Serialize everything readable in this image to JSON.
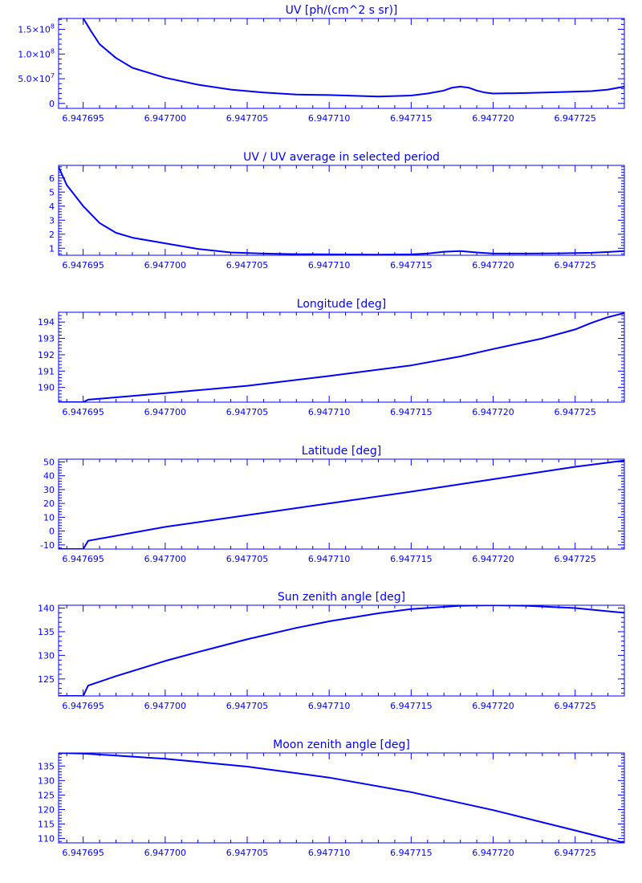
{
  "chart_data": [
    {
      "type": "line",
      "title": "UV [ph/(cm^2 s sr)]",
      "xlim": [
        6.9476935,
        6.947728
      ],
      "ylim": [
        -10000000.0,
        172000000.0
      ],
      "xticks": [
        6.947695,
        6.9477,
        6.947705,
        6.94771,
        6.947715,
        6.94772,
        6.947725
      ],
      "xtick_labels": [
        "6.947695",
        "6.947700",
        "6.947705",
        "6.947710",
        "6.947715",
        "6.947720",
        "6.947725"
      ],
      "yticks": [
        0,
        50000000.0,
        100000000.0,
        150000000.0
      ],
      "ytick_labels": [
        {
          "base": "0",
          "exp": ""
        },
        {
          "base": "5.0×10",
          "exp": "7"
        },
        {
          "base": "1.0×10",
          "exp": "8"
        },
        {
          "base": "1.5×10",
          "exp": "8"
        }
      ],
      "x": [
        6.947695,
        6.9476952,
        6.9476955,
        6.947696,
        6.947697,
        6.947698,
        6.947699,
        6.9477,
        6.947702,
        6.947704,
        6.947706,
        6.947708,
        6.94771,
        6.947712,
        6.947713,
        6.947715,
        6.947716,
        6.947717,
        6.9477175,
        6.947718,
        6.9477185,
        6.947719,
        6.9477195,
        6.94772,
        6.947722,
        6.947724,
        6.947726,
        6.947727,
        6.947728
      ],
      "values": [
        172000000.0,
        162000000.0,
        145000000.0,
        120000000.0,
        92000000.0,
        72000000.0,
        62000000.0,
        52000000.0,
        38000000.0,
        28000000.0,
        22000000.0,
        18000000.0,
        17000000.0,
        15000000.0,
        14000000.0,
        16000000.0,
        20000000.0,
        26000000.0,
        32000000.0,
        34000000.0,
        32000000.0,
        26000000.0,
        22000000.0,
        20000000.0,
        21000000.0,
        23000000.0,
        25000000.0,
        28000000.0,
        34000000.0
      ]
    },
    {
      "type": "line",
      "title": "UV / UV average in selected period",
      "xlim": [
        6.9476935,
        6.947728
      ],
      "ylim": [
        0.5,
        6.9
      ],
      "xticks": [
        6.947695,
        6.9477,
        6.947705,
        6.94771,
        6.947715,
        6.94772,
        6.947725
      ],
      "xtick_labels": [
        "6.947695",
        "6.947700",
        "6.947705",
        "6.947710",
        "6.947715",
        "6.947720",
        "6.947725"
      ],
      "yticks": [
        1,
        2,
        3,
        4,
        5,
        6
      ],
      "ytick_labels": [
        "1",
        "2",
        "3",
        "4",
        "5",
        "6"
      ],
      "x": [
        6.9476935,
        6.947694,
        6.947695,
        6.947696,
        6.947697,
        6.947698,
        6.947699,
        6.9477,
        6.947702,
        6.947704,
        6.947706,
        6.947708,
        6.94771,
        6.947712,
        6.947713,
        6.947715,
        6.947716,
        6.947717,
        6.947718,
        6.947719,
        6.94772,
        6.947722,
        6.947724,
        6.947726,
        6.947728
      ],
      "values": [
        6.8,
        5.5,
        4.0,
        2.8,
        2.1,
        1.75,
        1.55,
        1.35,
        0.95,
        0.7,
        0.62,
        0.58,
        0.56,
        0.55,
        0.54,
        0.56,
        0.62,
        0.75,
        0.8,
        0.7,
        0.62,
        0.62,
        0.64,
        0.68,
        0.8
      ]
    },
    {
      "type": "line",
      "title": "Longitude [deg]",
      "xlim": [
        6.9476935,
        6.947728
      ],
      "ylim": [
        189.1,
        194.6
      ],
      "xticks": [
        6.947695,
        6.9477,
        6.947705,
        6.94771,
        6.947715,
        6.94772,
        6.947725
      ],
      "xtick_labels": [
        "6.947695",
        "6.947700",
        "6.947705",
        "6.947710",
        "6.947715",
        "6.947720",
        "6.947725"
      ],
      "yticks": [
        190,
        191,
        192,
        193,
        194
      ],
      "ytick_labels": [
        "190",
        "191",
        "192",
        "193",
        "194"
      ],
      "x": [
        6.9476935,
        6.947695,
        6.9476953,
        6.9477,
        6.947705,
        6.94771,
        6.947715,
        6.947718,
        6.94772,
        6.947723,
        6.947725,
        6.947726,
        6.947727,
        6.947728
      ],
      "values": [
        189.1,
        189.1,
        189.25,
        189.65,
        190.1,
        190.7,
        191.35,
        191.9,
        192.35,
        193.0,
        193.55,
        193.95,
        194.3,
        194.55
      ]
    },
    {
      "type": "line",
      "title": "Latitude [deg]",
      "xlim": [
        6.9476935,
        6.947728
      ],
      "ylim": [
        -13,
        52
      ],
      "xticks": [
        6.947695,
        6.9477,
        6.947705,
        6.94771,
        6.947715,
        6.94772,
        6.947725
      ],
      "xtick_labels": [
        "6.947695",
        "6.947700",
        "6.947705",
        "6.947710",
        "6.947715",
        "6.947720",
        "6.947725"
      ],
      "yticks": [
        -10,
        0,
        10,
        20,
        30,
        40,
        50
      ],
      "ytick_labels": [
        "-10",
        "0",
        "10",
        "20",
        "30",
        "40",
        "50"
      ],
      "x": [
        6.9476935,
        6.947695,
        6.9476953,
        6.9477,
        6.947705,
        6.94771,
        6.947715,
        6.94772,
        6.947725,
        6.947728
      ],
      "values": [
        -13,
        -13,
        -7,
        3,
        11.5,
        20,
        28.5,
        37.5,
        46.5,
        51
      ]
    },
    {
      "type": "line",
      "title": "Sun zenith angle [deg]",
      "xlim": [
        6.9476935,
        6.947728
      ],
      "ylim": [
        121.4,
        140.6
      ],
      "xticks": [
        6.947695,
        6.9477,
        6.947705,
        6.94771,
        6.947715,
        6.94772,
        6.947725
      ],
      "xtick_labels": [
        "6.947695",
        "6.947700",
        "6.947705",
        "6.947710",
        "6.947715",
        "6.947720",
        "6.947725"
      ],
      "yticks": [
        125,
        130,
        135,
        140
      ],
      "ytick_labels": [
        "125",
        "130",
        "135",
        "140"
      ],
      "x": [
        6.9476935,
        6.947695,
        6.9476953,
        6.947697,
        6.9477,
        6.947702,
        6.947705,
        6.947708,
        6.94771,
        6.947713,
        6.947715,
        6.947718,
        6.94772,
        6.947722,
        6.947725,
        6.947728
      ],
      "values": [
        121.4,
        121.4,
        123.6,
        125.6,
        128.8,
        130.7,
        133.4,
        135.8,
        137.2,
        138.9,
        139.8,
        140.5,
        140.6,
        140.5,
        140.0,
        139.0
      ]
    },
    {
      "type": "line",
      "title": "Moon zenith angle [deg]",
      "xlim": [
        6.9476935,
        6.947728
      ],
      "ylim": [
        108.5,
        139.5
      ],
      "xticks": [
        6.947695,
        6.9477,
        6.947705,
        6.94771,
        6.947715,
        6.94772,
        6.947725
      ],
      "xtick_labels": [
        "6.947695",
        "6.947700",
        "6.947705",
        "6.947710",
        "6.947715",
        "6.947720",
        "6.947725"
      ],
      "yticks": [
        110,
        115,
        120,
        125,
        130,
        135
      ],
      "ytick_labels": [
        "110",
        "115",
        "120",
        "125",
        "130",
        "135"
      ],
      "x": [
        6.9476935,
        6.947695,
        6.9477,
        6.947705,
        6.94771,
        6.947715,
        6.94772,
        6.947725,
        6.947728
      ],
      "values": [
        139.5,
        139.3,
        137.5,
        134.8,
        131.0,
        126.0,
        119.8,
        112.8,
        108.5
      ]
    }
  ],
  "colors": {
    "ink": "#0000ff",
    "background": "#ffffff"
  }
}
